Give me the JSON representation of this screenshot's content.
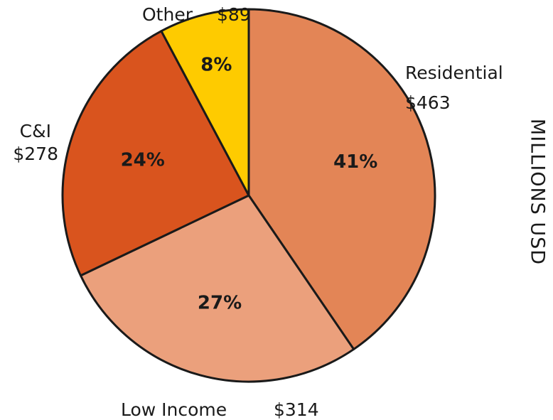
{
  "chart_data": {
    "type": "pie",
    "categories": [
      "Residential",
      "Low Income",
      "C&I",
      "Other"
    ],
    "values": [
      463,
      314,
      278,
      89
    ],
    "value_labels": [
      "$463",
      "$314",
      "$278",
      "$89"
    ],
    "percent_labels": [
      "41%",
      "27%",
      "24%",
      "8%"
    ],
    "colors": [
      "#e38556",
      "#eba07c",
      "#d9541e",
      "#fecb00"
    ],
    "axis_label": "MILLIONS USD"
  }
}
